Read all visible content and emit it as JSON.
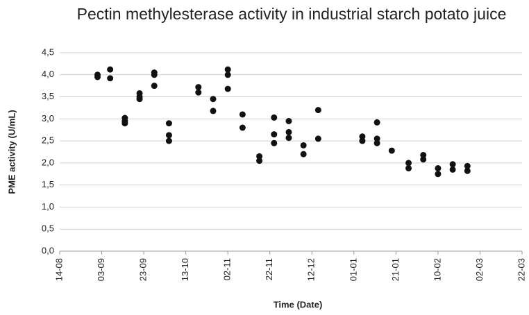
{
  "chart_data": {
    "type": "scatter",
    "title": "Pectin methylesterase activity in industrial starch potato juice",
    "x_label": "Time (Date)",
    "y_label": "PME activity  (U/mL)",
    "color": "#111111",
    "grid": true,
    "x": [
      "01-09",
      "01-09",
      "07-09",
      "07-09",
      "14-09",
      "14-09",
      "14-09",
      "21-09",
      "21-09",
      "21-09",
      "28-09",
      "28-09",
      "28-09",
      "05-10",
      "05-10",
      "05-10",
      "19-10",
      "19-10",
      "26-10",
      "26-10",
      "02-11",
      "02-11",
      "02-11",
      "09-11",
      "09-11",
      "17-11",
      "17-11",
      "24-11",
      "24-11",
      "24-11",
      "01-12",
      "01-12",
      "01-12",
      "08-12",
      "08-12",
      "15-12",
      "15-12",
      "05-01",
      "05-01",
      "12-01",
      "12-01",
      "12-01",
      "19-01",
      "27-01",
      "27-01",
      "03-02",
      "03-02",
      "10-02",
      "10-02",
      "17-02",
      "17-02",
      "24-02",
      "24-02"
    ],
    "values": [
      4.0,
      3.95,
      4.12,
      3.92,
      3.02,
      2.95,
      2.9,
      3.58,
      3.5,
      3.45,
      4.05,
      4.0,
      3.75,
      2.9,
      2.63,
      2.5,
      3.72,
      3.6,
      3.45,
      3.18,
      4.12,
      4.0,
      3.68,
      3.1,
      2.8,
      2.15,
      2.05,
      3.03,
      2.65,
      2.45,
      2.95,
      2.7,
      2.57,
      2.4,
      2.2,
      3.2,
      2.55,
      2.6,
      2.5,
      2.92,
      2.55,
      2.45,
      2.28,
      2.0,
      1.88,
      2.18,
      2.08,
      1.88,
      1.75,
      1.97,
      1.85,
      1.93,
      1.82
    ],
    "xlim": [
      "14-08",
      "22-03"
    ],
    "xticks": [
      "14-08",
      "03-09",
      "23-09",
      "13-10",
      "02-11",
      "22-11",
      "12-12",
      "01-01",
      "21-01",
      "10-02",
      "02-03",
      "22-03"
    ],
    "ylim": [
      0,
      4.5
    ],
    "yticks": [
      {
        "value": 0,
        "label": "0,0"
      },
      {
        "value": 0.5,
        "label": "0,5"
      },
      {
        "value": 1,
        "label": "1,0"
      },
      {
        "value": 1.5,
        "label": "1,5"
      },
      {
        "value": 2,
        "label": "2,0"
      },
      {
        "value": 2.5,
        "label": "2,5"
      },
      {
        "value": 3,
        "label": "3,0"
      },
      {
        "value": 3.5,
        "label": "3,5"
      },
      {
        "value": 4,
        "label": "4,0"
      },
      {
        "value": 4.5,
        "label": "4,5"
      }
    ]
  }
}
